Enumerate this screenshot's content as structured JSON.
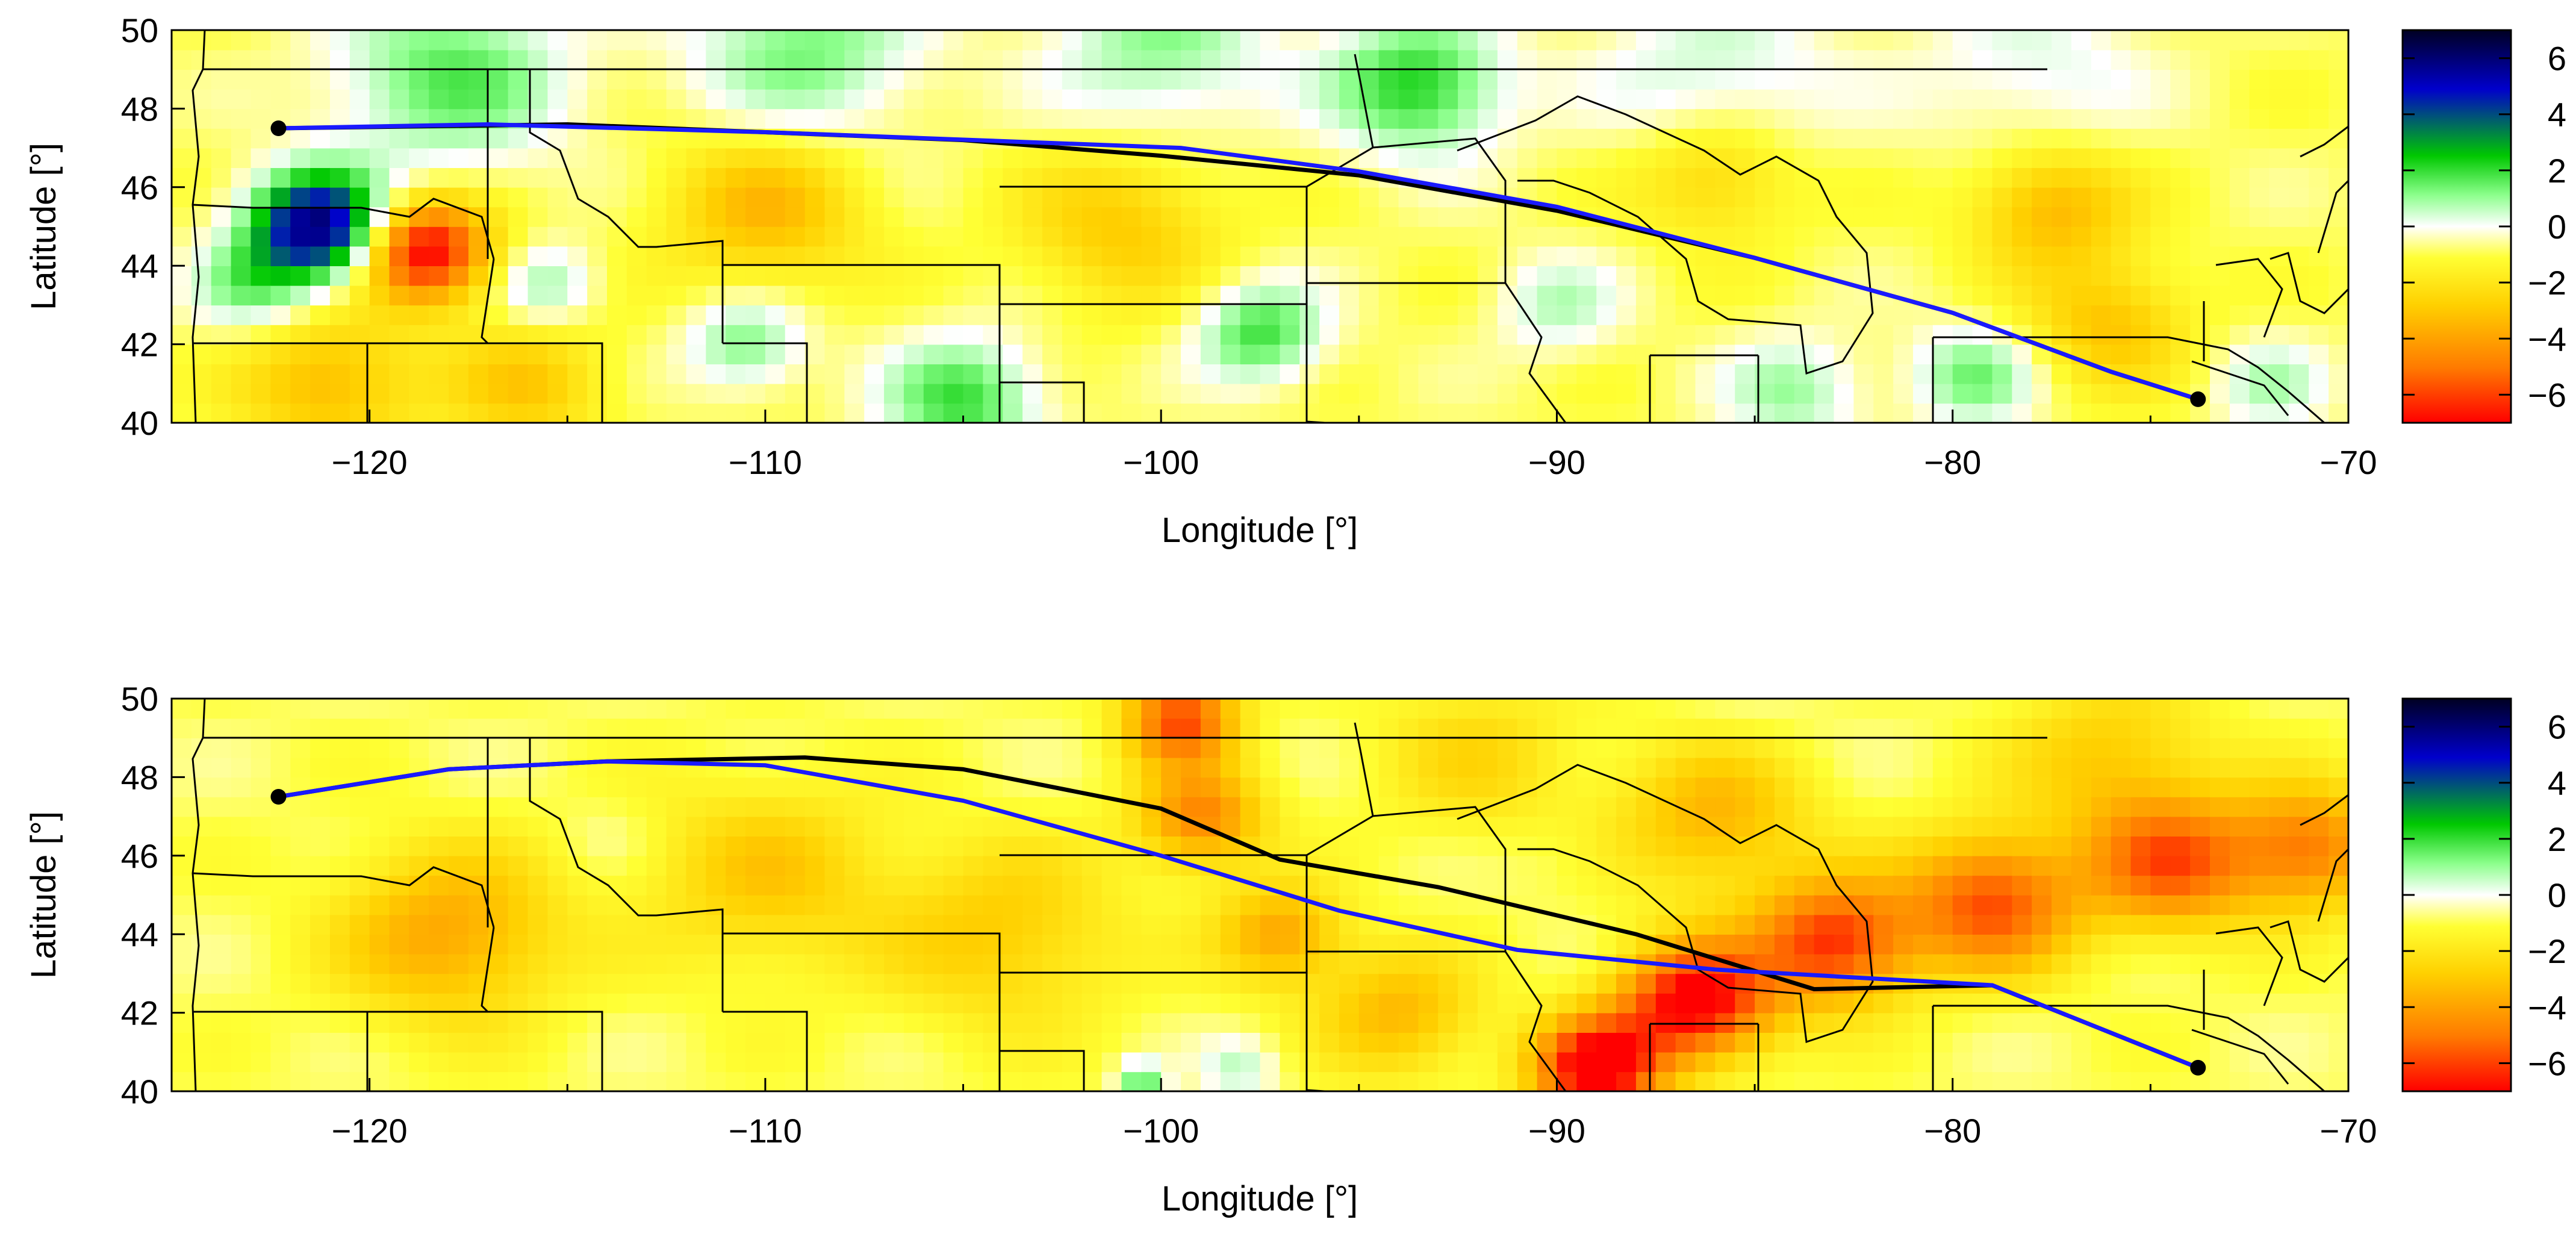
{
  "panels": [
    {
      "id": "top",
      "xlabel": "Longitude [°]",
      "ylabel": "Latitude [°]",
      "xlim": [
        -125,
        -70
      ],
      "ylim": [
        40,
        50
      ],
      "xticks": [
        "−120",
        "−110",
        "−100",
        "−90",
        "−80",
        "−70"
      ],
      "yticks": [
        "40",
        "42",
        "44",
        "46",
        "48",
        "50"
      ],
      "colorbar_ticks": [
        "6",
        "4",
        "2",
        "0",
        "−2",
        "−4",
        "−6"
      ],
      "colorbar_range": [
        -7,
        7
      ],
      "route_great_circle": [
        [
          -122.3,
          47.5
        ],
        [
          -115,
          47.6
        ],
        [
          -105,
          47.2
        ],
        [
          -100,
          46.8
        ],
        [
          -95,
          46.3
        ],
        [
          -90,
          45.4
        ],
        [
          -85,
          44.2
        ],
        [
          -80,
          42.8
        ],
        [
          -76,
          41.3
        ],
        [
          -73.8,
          40.6
        ]
      ],
      "route_optimized": [
        [
          -122.3,
          47.5
        ],
        [
          -117,
          47.6
        ],
        [
          -110,
          47.4
        ],
        [
          -99.5,
          47.0
        ],
        [
          -95,
          46.4
        ],
        [
          -90,
          45.5
        ],
        [
          -85,
          44.2
        ],
        [
          -80,
          42.8
        ],
        [
          -76,
          41.3
        ],
        [
          -73.8,
          40.6
        ]
      ],
      "field_blobs": [
        {
          "lon": -121.3,
          "lat": 45.0,
          "value": 7.0,
          "r": 1.7
        },
        {
          "lon": -118.6,
          "lat": 44.4,
          "value": -6.5,
          "r": 1.6
        },
        {
          "lon": -123.0,
          "lat": 43.5,
          "value": 2.0,
          "r": 1.5
        },
        {
          "lon": -118.0,
          "lat": 48.8,
          "value": 2.5,
          "r": 3.0
        },
        {
          "lon": -109.0,
          "lat": 49.5,
          "value": 2.2,
          "r": 3.0
        },
        {
          "lon": -100.0,
          "lat": 49.6,
          "value": 2.0,
          "r": 2.8
        },
        {
          "lon": -93.5,
          "lat": 48.6,
          "value": 3.2,
          "r": 2.2
        },
        {
          "lon": -86.0,
          "lat": 48.8,
          "value": 1.5,
          "r": 3.0
        },
        {
          "lon": -78.0,
          "lat": 49.0,
          "value": 1.2,
          "r": 3.0
        },
        {
          "lon": -110.0,
          "lat": 45.5,
          "value": -2.5,
          "r": 2.5
        },
        {
          "lon": -101.0,
          "lat": 45.0,
          "value": -2.0,
          "r": 2.5
        },
        {
          "lon": -86.0,
          "lat": 46.3,
          "value": -2.0,
          "r": 2.0
        },
        {
          "lon": -77.5,
          "lat": 45.5,
          "value": -2.6,
          "r": 2.0
        },
        {
          "lon": -76.0,
          "lat": 42.5,
          "value": -2.2,
          "r": 2.0
        },
        {
          "lon": -121.0,
          "lat": 41.0,
          "value": -2.5,
          "r": 2.2
        },
        {
          "lon": -116.0,
          "lat": 41.0,
          "value": -2.0,
          "r": 2.0
        },
        {
          "lon": -110.5,
          "lat": 42.0,
          "value": 2.2,
          "r": 1.5
        },
        {
          "lon": -105.0,
          "lat": 40.6,
          "value": 2.8,
          "r": 2.0
        },
        {
          "lon": -97.5,
          "lat": 42.3,
          "value": 2.8,
          "r": 1.6
        },
        {
          "lon": -90.0,
          "lat": 43.0,
          "value": 1.5,
          "r": 1.6
        },
        {
          "lon": -84.0,
          "lat": 40.8,
          "value": 1.8,
          "r": 1.8
        },
        {
          "lon": -79.5,
          "lat": 41.2,
          "value": 2.2,
          "r": 1.6
        },
        {
          "lon": -72.0,
          "lat": 41.0,
          "value": 1.5,
          "r": 1.5
        },
        {
          "lon": -115.5,
          "lat": 43.5,
          "value": 1.8,
          "r": 1.3
        }
      ]
    },
    {
      "id": "bottom",
      "xlabel": "Longitude [°]",
      "ylabel": "Latitude [°]",
      "xlim": [
        -125,
        -70
      ],
      "ylim": [
        40,
        50
      ],
      "xticks": [
        "−120",
        "−110",
        "−100",
        "−90",
        "−80",
        "−70"
      ],
      "yticks": [
        "40",
        "42",
        "44",
        "46",
        "48",
        "50"
      ],
      "colorbar_ticks": [
        "6",
        "4",
        "2",
        "0",
        "−2",
        "−4",
        "−6"
      ],
      "colorbar_range": [
        -7,
        7
      ],
      "route_great_circle": [
        [
          -122.3,
          47.5
        ],
        [
          -118,
          48.2
        ],
        [
          -114,
          48.4
        ],
        [
          -109,
          48.5
        ],
        [
          -105,
          48.2
        ],
        [
          -100,
          47.2
        ],
        [
          -97,
          45.9
        ],
        [
          -93,
          45.2
        ],
        [
          -88,
          44.0
        ],
        [
          -83.5,
          42.6
        ],
        [
          -79,
          42.7
        ],
        [
          -73.8,
          40.6
        ]
      ],
      "route_optimized": [
        [
          -122.3,
          47.5
        ],
        [
          -118,
          48.2
        ],
        [
          -114,
          48.4
        ],
        [
          -110,
          48.3
        ],
        [
          -105,
          47.4
        ],
        [
          -100,
          46.0
        ],
        [
          -95.5,
          44.6
        ],
        [
          -91,
          43.6
        ],
        [
          -86,
          43.1
        ],
        [
          -79,
          42.7
        ],
        [
          -73.8,
          40.6
        ]
      ],
      "field_blobs": [
        {
          "lon": -118.0,
          "lat": 44.0,
          "value": -3.0,
          "r": 2.8
        },
        {
          "lon": -110.0,
          "lat": 45.5,
          "value": -2.0,
          "r": 3.0
        },
        {
          "lon": -104.0,
          "lat": 44.0,
          "value": -2.0,
          "r": 3.0
        },
        {
          "lon": -99.5,
          "lat": 49.5,
          "value": -5.0,
          "r": 1.4
        },
        {
          "lon": -99.0,
          "lat": 47.0,
          "value": -3.8,
          "r": 1.6
        },
        {
          "lon": -97.0,
          "lat": 44.0,
          "value": -3.0,
          "r": 1.6
        },
        {
          "lon": -94.0,
          "lat": 42.0,
          "value": -2.5,
          "r": 2.0
        },
        {
          "lon": -89.0,
          "lat": 40.6,
          "value": -6.8,
          "r": 1.6
        },
        {
          "lon": -86.5,
          "lat": 42.3,
          "value": -6.5,
          "r": 1.9
        },
        {
          "lon": -83.0,
          "lat": 43.8,
          "value": -5.3,
          "r": 2.0
        },
        {
          "lon": -79.0,
          "lat": 44.8,
          "value": -4.8,
          "r": 2.2
        },
        {
          "lon": -74.5,
          "lat": 45.8,
          "value": -4.5,
          "r": 2.1
        },
        {
          "lon": -71.0,
          "lat": 46.2,
          "value": -4.0,
          "r": 2.0
        },
        {
          "lon": -86.0,
          "lat": 47.0,
          "value": -2.6,
          "r": 2.4
        },
        {
          "lon": -76.0,
          "lat": 48.5,
          "value": -2.0,
          "r": 2.5
        },
        {
          "lon": -92.0,
          "lat": 48.5,
          "value": -1.5,
          "r": 2.5
        },
        {
          "lon": -114.0,
          "lat": 46.5,
          "value": 0.4,
          "r": 1.2
        },
        {
          "lon": -98.0,
          "lat": 40.6,
          "value": 1.5,
          "r": 1.0
        },
        {
          "lon": -100.5,
          "lat": 40.3,
          "value": 2.5,
          "r": 0.6
        },
        {
          "lon": -90.0,
          "lat": 46.0,
          "value": 0.3,
          "r": 1.2
        },
        {
          "lon": -85.0,
          "lat": 49.6,
          "value": 0.3,
          "r": 2.0
        }
      ]
    }
  ],
  "colors": {
    "colormap": [
      "#ff0000",
      "#ff7a00",
      "#ffd000",
      "#ffff33",
      "#ffffff",
      "#8cff8c",
      "#00c800",
      "#0000cc",
      "#000022"
    ],
    "route_great_circle": "#000000",
    "route_optimized": "#1a1aff",
    "borders": "#000000"
  }
}
